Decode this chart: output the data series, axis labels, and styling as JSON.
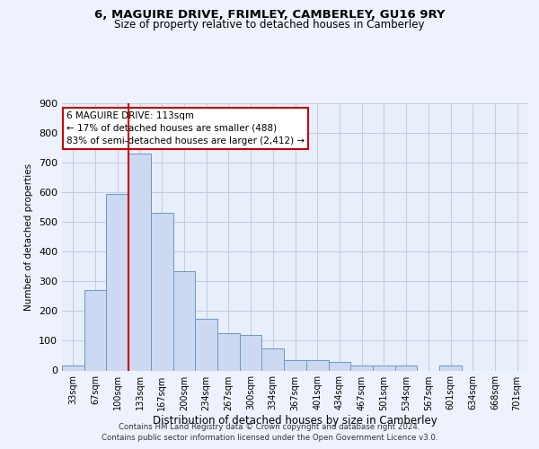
{
  "title1": "6, MAGUIRE DRIVE, FRIMLEY, CAMBERLEY, GU16 9RY",
  "title2": "Size of property relative to detached houses in Camberley",
  "xlabel": "Distribution of detached houses by size in Camberley",
  "ylabel": "Number of detached properties",
  "categories": [
    "33sqm",
    "67sqm",
    "100sqm",
    "133sqm",
    "167sqm",
    "200sqm",
    "234sqm",
    "267sqm",
    "300sqm",
    "334sqm",
    "367sqm",
    "401sqm",
    "434sqm",
    "467sqm",
    "501sqm",
    "534sqm",
    "567sqm",
    "601sqm",
    "634sqm",
    "668sqm",
    "701sqm"
  ],
  "values": [
    18,
    270,
    595,
    730,
    530,
    335,
    175,
    125,
    120,
    75,
    35,
    35,
    30,
    18,
    18,
    17,
    0,
    17,
    0,
    0,
    0
  ],
  "bar_color": "#ccd9f0",
  "bar_edge_color": "#6699cc",
  "grid_color": "#c0cce0",
  "annotation_box_color": "#cc0000",
  "vline_color": "#cc0000",
  "vline_x": 2.5,
  "annotation_text": "6 MAGUIRE DRIVE: 113sqm\n← 17% of detached houses are smaller (488)\n83% of semi-detached houses are larger (2,412) →",
  "footer1": "Contains HM Land Registry data © Crown copyright and database right 2024.",
  "footer2": "Contains public sector information licensed under the Open Government Licence v3.0.",
  "ylim": [
    0,
    900
  ],
  "yticks": [
    0,
    100,
    200,
    300,
    400,
    500,
    600,
    700,
    800,
    900
  ],
  "background_color": "#eef2fc",
  "plot_bg_color": "#e8eefa"
}
